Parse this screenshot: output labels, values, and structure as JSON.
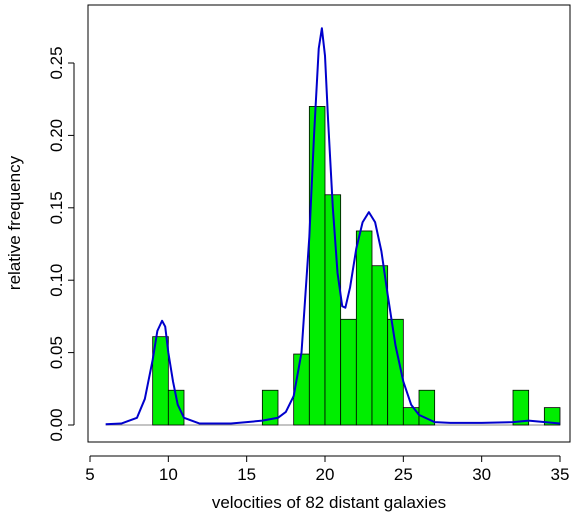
{
  "chart_data": {
    "type": "bar",
    "title": "",
    "xlabel": "velocities of 82 distant galaxies",
    "ylabel": "relative frequency",
    "xlim": [
      5,
      35.5
    ],
    "ylim": [
      0,
      0.28
    ],
    "xticks": [
      5,
      10,
      15,
      20,
      25,
      30,
      35
    ],
    "yticks": [
      0.0,
      0.05,
      0.1,
      0.15,
      0.2,
      0.25
    ],
    "ytick_labels": [
      "0.00",
      "0.05",
      "0.10",
      "0.15",
      "0.20",
      "0.25"
    ],
    "grid": false,
    "legend": "none",
    "bar_color": "#00ee00",
    "curve_color": "#0000cc",
    "bins": [
      {
        "x0": 9,
        "x1": 10,
        "y": 0.061
      },
      {
        "x0": 10,
        "x1": 11,
        "y": 0.024
      },
      {
        "x0": 16,
        "x1": 17,
        "y": 0.024
      },
      {
        "x0": 18,
        "x1": 19,
        "y": 0.049
      },
      {
        "x0": 19,
        "x1": 20,
        "y": 0.22
      },
      {
        "x0": 20,
        "x1": 21,
        "y": 0.159
      },
      {
        "x0": 21,
        "x1": 22,
        "y": 0.073
      },
      {
        "x0": 22,
        "x1": 23,
        "y": 0.134
      },
      {
        "x0": 23,
        "x1": 24,
        "y": 0.11
      },
      {
        "x0": 24,
        "x1": 25,
        "y": 0.073
      },
      {
        "x0": 25,
        "x1": 26,
        "y": 0.012
      },
      {
        "x0": 26,
        "x1": 27,
        "y": 0.024
      },
      {
        "x0": 32,
        "x1": 33,
        "y": 0.024
      },
      {
        "x0": 34,
        "x1": 35,
        "y": 0.012
      }
    ],
    "density_curve": {
      "x": [
        6,
        7,
        8,
        8.5,
        9,
        9.3,
        9.6,
        9.8,
        10,
        10.3,
        10.6,
        11,
        12,
        13,
        14,
        15,
        16,
        17,
        17.5,
        18,
        18.5,
        19,
        19.3,
        19.6,
        19.8,
        20,
        20.2,
        20.5,
        20.8,
        21.1,
        21.3,
        21.6,
        22,
        22.4,
        22.8,
        23.2,
        23.6,
        24,
        24.5,
        25,
        25.5,
        26,
        27,
        28,
        30,
        32,
        33,
        35
      ],
      "y": [
        0.0005,
        0.001,
        0.005,
        0.018,
        0.045,
        0.065,
        0.072,
        0.068,
        0.05,
        0.03,
        0.014,
        0.005,
        0.001,
        0.001,
        0.001,
        0.002,
        0.003,
        0.005,
        0.009,
        0.02,
        0.05,
        0.13,
        0.2,
        0.26,
        0.274,
        0.255,
        0.21,
        0.15,
        0.105,
        0.082,
        0.081,
        0.095,
        0.122,
        0.14,
        0.147,
        0.14,
        0.12,
        0.09,
        0.055,
        0.03,
        0.014,
        0.007,
        0.002,
        0.0015,
        0.0015,
        0.002,
        0.003,
        0.001
      ]
    }
  }
}
